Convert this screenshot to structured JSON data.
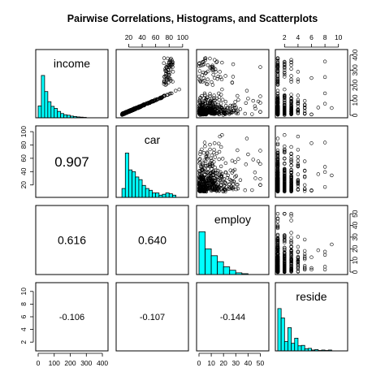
{
  "chart_data": {
    "type": "scatter-matrix",
    "title": "Pairwise Correlations, Histograms, and Scatterplots",
    "variables": [
      "income",
      "car",
      "employ",
      "reside"
    ],
    "ranges": {
      "income": [
        0,
        420
      ],
      "car": [
        5,
        105
      ],
      "employ": [
        0,
        55
      ],
      "reside": [
        1,
        11
      ]
    },
    "axis_ticks": {
      "income": [
        0,
        100,
        200,
        300,
        400
      ],
      "car": [
        20,
        40,
        60,
        80,
        100
      ],
      "employ": [
        0,
        10,
        20,
        30,
        40,
        50
      ],
      "reside": [
        2,
        4,
        6,
        8,
        10
      ]
    },
    "correlations": [
      {
        "row": "car",
        "col": "income",
        "value": "0.907"
      },
      {
        "row": "employ",
        "col": "income",
        "value": "0.616"
      },
      {
        "row": "employ",
        "col": "car",
        "value": "0.640"
      },
      {
        "row": "reside",
        "col": "income",
        "value": "-0.106"
      },
      {
        "row": "reside",
        "col": "car",
        "value": "-0.107"
      },
      {
        "row": "reside",
        "col": "employ",
        "value": "-0.144"
      }
    ],
    "histograms": {
      "income": {
        "bins": [
          0,
          20,
          40,
          60,
          80,
          100,
          120,
          140,
          160,
          180,
          200,
          220,
          240,
          260,
          280,
          300
        ],
        "relative_heights": [
          0.28,
          1.0,
          0.62,
          0.38,
          0.27,
          0.22,
          0.15,
          0.1,
          0.07,
          0.06,
          0.04,
          0.03,
          0.02,
          0.015,
          0.01
        ]
      },
      "car": {
        "bins": [
          10,
          15,
          20,
          25,
          30,
          35,
          40,
          45,
          50,
          55,
          60,
          65,
          70,
          75,
          80,
          85,
          90
        ],
        "relative_heights": [
          0.2,
          1.0,
          0.62,
          0.58,
          0.46,
          0.4,
          0.27,
          0.2,
          0.16,
          0.1,
          0.1,
          0.05,
          0.07,
          0.1,
          0.08,
          0.05
        ]
      },
      "employ": {
        "bins": [
          0,
          5,
          10,
          15,
          20,
          25,
          30,
          35,
          40
        ],
        "relative_heights": [
          1.0,
          0.6,
          0.44,
          0.3,
          0.18,
          0.1,
          0.04,
          0.02
        ]
      },
      "reside": {
        "bins": [
          1,
          1.5,
          2,
          2.5,
          3,
          3.5,
          4,
          4.5,
          5,
          5.5,
          6,
          6.5,
          7,
          7.5,
          8,
          8.5,
          9
        ],
        "relative_heights": [
          1.0,
          0.78,
          0.22,
          0.55,
          0.18,
          0.3,
          0.12,
          0.13,
          0.05,
          0.06,
          0.02,
          0.03,
          0.01,
          0.02,
          0.01,
          0.02
        ]
      }
    },
    "scatter_summaries": [
      {
        "x": "car",
        "y": "income",
        "note": "strong linear trend; cluster near car 75-85, income 200-400"
      },
      {
        "x": "employ",
        "y": "income",
        "note": "dense cloud, wide spread"
      },
      {
        "x": "reside",
        "y": "income",
        "note": "discrete reside values 1-10"
      },
      {
        "x": "employ",
        "y": "car",
        "note": "dense cloud"
      },
      {
        "x": "reside",
        "y": "car",
        "note": "discrete reside values 1-10"
      },
      {
        "x": "reside",
        "y": "employ",
        "note": "discrete reside values 1-10"
      }
    ]
  },
  "colors": {
    "hist_fill": "#00ffff",
    "point": "#000000",
    "frame": "#000000"
  }
}
